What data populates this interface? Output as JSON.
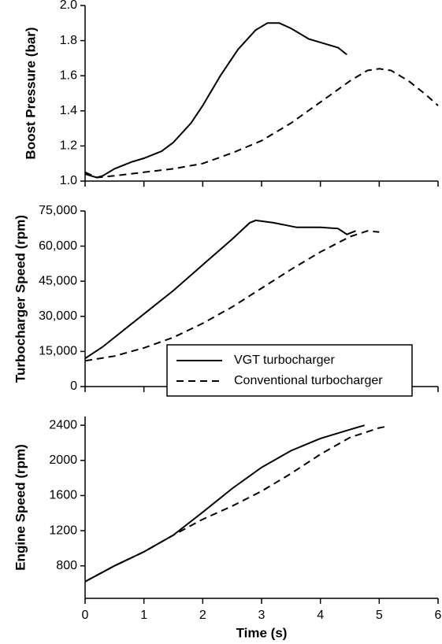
{
  "chart_data": [
    {
      "type": "line",
      "ylabel": "Boost Pressure (bar)",
      "xlim": [
        0,
        6
      ],
      "xticks": [
        0,
        1,
        2,
        3,
        4,
        5,
        6
      ],
      "ylim": [
        1.0,
        2.0
      ],
      "yticks": [
        {
          "value": 1.0,
          "label": "1.0"
        },
        1.2,
        1.4,
        1.6,
        1.8,
        {
          "value": 2.0,
          "label": "2.0"
        }
      ],
      "series": [
        {
          "name": "VGT turbocharger",
          "color": "#000000",
          "linestyle": "solid",
          "x": [
            0,
            0.1,
            0.2,
            0.3,
            0.5,
            0.8,
            1.0,
            1.3,
            1.5,
            1.8,
            2.0,
            2.3,
            2.6,
            2.9,
            3.1,
            3.3,
            3.5,
            3.8,
            4.1,
            4.3,
            4.45
          ],
          "values": [
            1.04,
            1.03,
            1.02,
            1.03,
            1.07,
            1.11,
            1.13,
            1.17,
            1.22,
            1.33,
            1.43,
            1.6,
            1.75,
            1.86,
            1.9,
            1.9,
            1.87,
            1.81,
            1.78,
            1.76,
            1.72
          ]
        },
        {
          "name": "Conventional turbocharger",
          "color": "#000000",
          "linestyle": "dashed",
          "x": [
            0,
            0.2,
            0.5,
            1,
            1.5,
            2,
            2.5,
            3,
            3.5,
            4,
            4.5,
            4.8,
            5,
            5.2,
            5.5,
            5.8,
            6
          ],
          "values": [
            1.05,
            1.02,
            1.03,
            1.05,
            1.07,
            1.1,
            1.16,
            1.23,
            1.33,
            1.45,
            1.57,
            1.63,
            1.64,
            1.63,
            1.57,
            1.49,
            1.43
          ]
        }
      ]
    },
    {
      "type": "line",
      "ylabel": "Turbocharger Speed (rpm)",
      "xlim": [
        0,
        6
      ],
      "xticks": [
        0,
        1,
        2,
        3,
        4,
        5,
        6
      ],
      "ylim": [
        0,
        75000
      ],
      "yticks": [
        0,
        {
          "value": 15000,
          "label": "15,000"
        },
        {
          "value": 30000,
          "label": "30,000"
        },
        {
          "value": 45000,
          "label": "45,000"
        },
        {
          "value": 60000,
          "label": "60,000"
        },
        {
          "value": 75000,
          "label": "75,000"
        }
      ],
      "legend": "lower right",
      "series": [
        {
          "name": "VGT turbocharger",
          "color": "#000000",
          "linestyle": "solid",
          "x": [
            0,
            0.3,
            0.6,
            1,
            1.5,
            2,
            2.5,
            2.8,
            2.9,
            3.2,
            3.6,
            4,
            4.3,
            4.45,
            4.6
          ],
          "values": [
            12000,
            17000,
            23000,
            31000,
            41000,
            52000,
            63000,
            70000,
            71000,
            70000,
            68000,
            68000,
            67500,
            65000,
            66500
          ]
        },
        {
          "name": "Conventional turbocharger",
          "color": "#000000",
          "linestyle": "dashed",
          "x": [
            0,
            0.5,
            1,
            1.5,
            2,
            2.5,
            3,
            3.5,
            4,
            4.5,
            4.8,
            5
          ],
          "values": [
            11000,
            13000,
            16500,
            21000,
            27000,
            34000,
            42000,
            50000,
            57500,
            64000,
            66500,
            66000
          ]
        }
      ]
    },
    {
      "type": "line",
      "ylabel": "Engine Speed (rpm)",
      "xlabel": "Time (s)",
      "xlim": [
        0,
        6
      ],
      "xticks": [
        0,
        1,
        2,
        3,
        4,
        5,
        6
      ],
      "ylim": [
        430,
        2500
      ],
      "yticks": [
        800,
        1200,
        1600,
        2000,
        2400
      ],
      "series": [
        {
          "name": "VGT turbocharger",
          "color": "#000000",
          "linestyle": "solid",
          "x": [
            0,
            0.5,
            1,
            1.5,
            2,
            2.5,
            3,
            3.5,
            4,
            4.5,
            4.75
          ],
          "values": [
            620,
            800,
            960,
            1150,
            1410,
            1680,
            1920,
            2110,
            2250,
            2350,
            2400
          ]
        },
        {
          "name": "Conventional turbocharger",
          "color": "#000000",
          "linestyle": "dashed",
          "x": [
            0,
            0.5,
            1,
            1.5,
            2,
            2.5,
            3,
            3.5,
            4,
            4.5,
            5,
            5.15
          ],
          "values": [
            620,
            800,
            960,
            1150,
            1330,
            1480,
            1650,
            1850,
            2070,
            2260,
            2370,
            2390
          ]
        }
      ]
    }
  ]
}
